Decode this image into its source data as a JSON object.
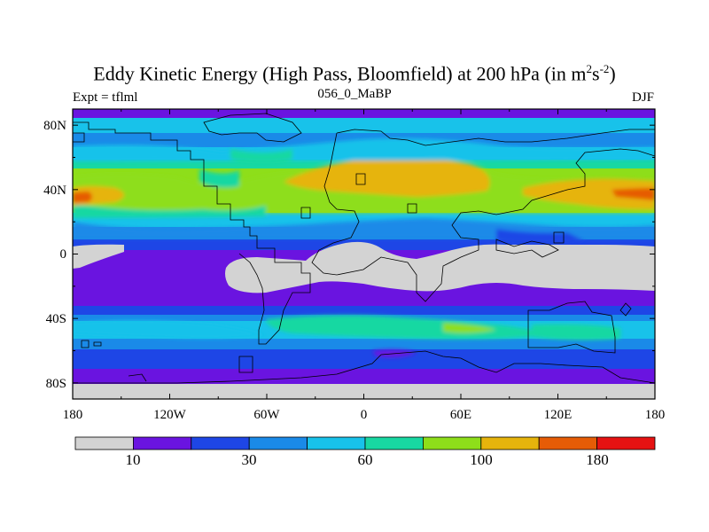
{
  "header": {
    "title_main": "Eddy Kinetic Energy (High Pass, Bloomfield) at 200 hPa (in m",
    "title_sup1": "2",
    "title_mid": "s",
    "title_sup2": "-2",
    "title_end": ")",
    "subtitle": "056_0_MaBP",
    "left_label": "Expt = tflml",
    "right_label": "DJF"
  },
  "chart_data": {
    "type": "heatmap",
    "projection": "cylindrical-equidistant",
    "x_ticks": [
      "180",
      "120W",
      "60W",
      "0",
      "60E",
      "120E",
      "180"
    ],
    "y_ticks": [
      "80N",
      "40N",
      "0",
      "40S",
      "80S"
    ],
    "xlim": [
      -180,
      180
    ],
    "ylim": [
      -90,
      90
    ],
    "colorbar": {
      "labels": [
        "10",
        "30",
        "60",
        "100",
        "180"
      ],
      "colors": [
        "#d3d3d3",
        "#6a14e0",
        "#1e46e6",
        "#1a8ae8",
        "#18c2ea",
        "#18d8a2",
        "#8ede1a",
        "#e6b40c",
        "#e65c06",
        "#e61212"
      ]
    }
  }
}
